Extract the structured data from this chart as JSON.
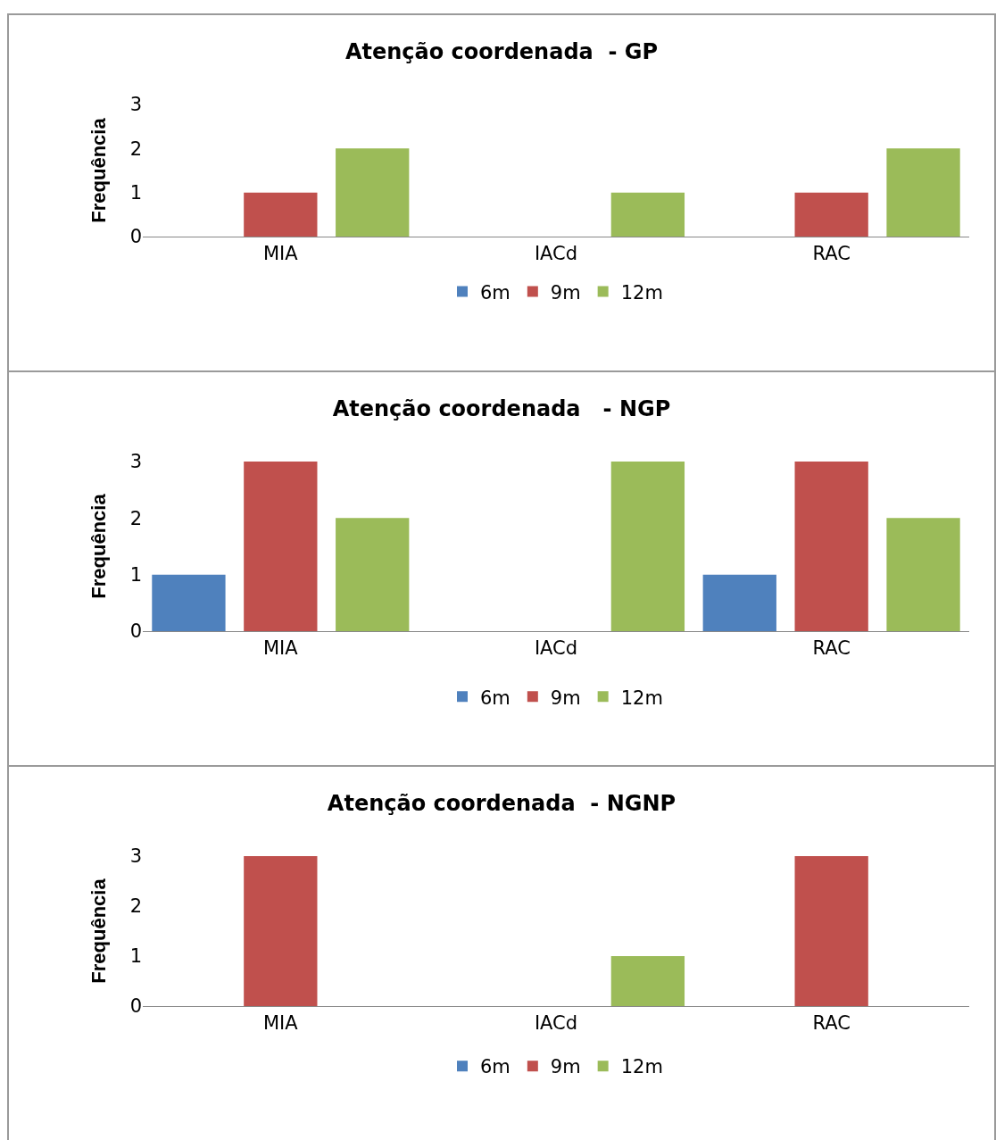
{
  "chart_data": [
    {
      "type": "bar",
      "title": "Atenção coordenada  - GP",
      "ylabel": "Frequência",
      "categories": [
        "MIA",
        "IACd",
        "RAC"
      ],
      "ylim": [
        0,
        3
      ],
      "yticks": [
        0,
        1,
        2,
        3
      ],
      "legend": "bottom",
      "series": [
        {
          "name": "6m",
          "color": "#4f81bd",
          "values": [
            0,
            0,
            0
          ]
        },
        {
          "name": "9m",
          "color": "#c0504d",
          "values": [
            1,
            0,
            1
          ]
        },
        {
          "name": "12m",
          "color": "#9bbb59",
          "values": [
            2,
            1,
            2
          ]
        }
      ]
    },
    {
      "type": "bar",
      "title": "Atenção coordenada   - NGP",
      "ylabel": "Frequência",
      "categories": [
        "MIA",
        "IACd",
        "RAC"
      ],
      "ylim": [
        0,
        3
      ],
      "yticks": [
        0,
        1,
        2,
        3
      ],
      "legend": "bottom",
      "series": [
        {
          "name": "6m",
          "color": "#4f81bd",
          "values": [
            1,
            0,
            1
          ]
        },
        {
          "name": "9m",
          "color": "#c0504d",
          "values": [
            3,
            0,
            3
          ]
        },
        {
          "name": "12m",
          "color": "#9bbb59",
          "values": [
            2,
            3,
            2
          ]
        }
      ]
    },
    {
      "type": "bar",
      "title": "Atenção coordenada  - NGNP",
      "ylabel": "Frequência",
      "categories": [
        "MIA",
        "IACd",
        "RAC"
      ],
      "ylim": [
        0,
        3
      ],
      "yticks": [
        0,
        1,
        2,
        3
      ],
      "legend": "bottom",
      "series": [
        {
          "name": "6m",
          "color": "#4f81bd",
          "values": [
            0,
            0,
            0
          ]
        },
        {
          "name": "9m",
          "color": "#c0504d",
          "values": [
            3,
            0,
            3
          ]
        },
        {
          "name": "12m",
          "color": "#9bbb59",
          "values": [
            0,
            1,
            0
          ]
        }
      ]
    }
  ]
}
